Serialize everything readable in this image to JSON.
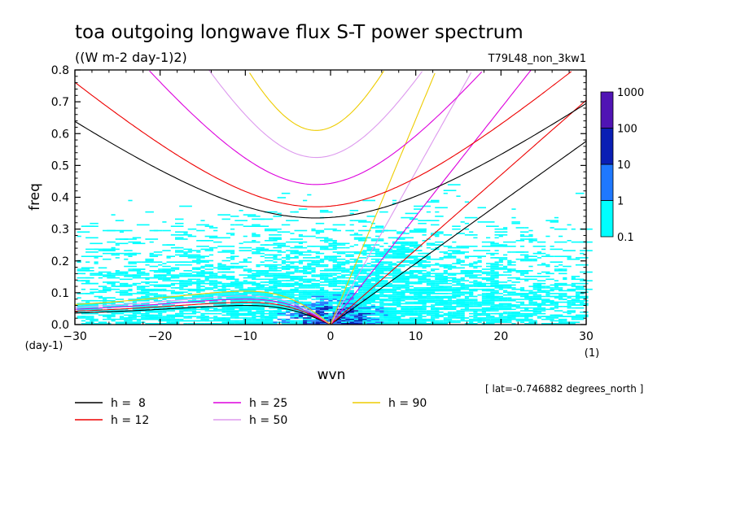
{
  "chart_data": {
    "type": "heatmap",
    "title": "toa outgoing longwave flux S-T power spectrum",
    "subtitle": "((W m-2 day-1)2)",
    "run_label": "T79L48_non_3kw1",
    "xlabel": "wvn",
    "ylabel": "freq",
    "x_unit_label": "(1)",
    "y_unit_label": "(day-1)",
    "xlim": [
      -30,
      30
    ],
    "ylim": [
      0,
      0.8
    ],
    "x_ticks": [
      -30,
      -20,
      -10,
      0,
      10,
      20,
      30
    ],
    "x_tick_labels": [
      "−30",
      "−20",
      "−10",
      "0",
      "10",
      "20",
      "30"
    ],
    "y_ticks": [
      0,
      0.1,
      0.2,
      0.3,
      0.4,
      0.5,
      0.6,
      0.7,
      0.8
    ],
    "y_tick_labels": [
      "0.0",
      "0.1",
      "0.2",
      "0.3",
      "0.4",
      "0.5",
      "0.6",
      "0.7",
      "0.8"
    ],
    "colorbar": {
      "levels": [
        "0.1",
        "1",
        "10",
        "100",
        "1000"
      ],
      "colors": [
        "#00ffff",
        "#1e78ff",
        "#0a1eb4",
        "#5014b4"
      ]
    },
    "lat_note": "[ lat=-0.746882 degrees_north ]",
    "legend": [
      {
        "label": "h =  8",
        "color": "#000000"
      },
      {
        "label": "h = 25",
        "color": "#dd00dd"
      },
      {
        "label": "h = 90",
        "color": "#eecc00"
      },
      {
        "label": "h = 12",
        "color": "#ee0000"
      },
      {
        "label": "h = 50",
        "color": "#dd99ee"
      }
    ],
    "dispersion_curves": {
      "kelvin_slope": [
        {
          "h": 8,
          "freq_per_wvn": 0.0192
        },
        {
          "h": 12,
          "freq_per_wvn": 0.0235
        },
        {
          "h": 25,
          "freq_per_wvn": 0.034
        },
        {
          "h": 50,
          "freq_per_wvn": 0.048
        },
        {
          "h": 90,
          "freq_per_wvn": 0.0645
        }
      ],
      "inertia_gravity_min": [
        {
          "h": 8,
          "freq": 0.335
        },
        {
          "h": 12,
          "freq": 0.37
        },
        {
          "h": 25,
          "freq": 0.44
        },
        {
          "h": 50,
          "freq": 0.525
        },
        {
          "h": 90,
          "freq": 0.61
        }
      ],
      "rossby_peak": [
        {
          "h": 8,
          "freq": 0.06
        },
        {
          "h": 12,
          "freq": 0.07
        },
        {
          "h": 25,
          "freq": 0.08
        },
        {
          "h": 50,
          "freq": 0.09
        },
        {
          "h": 90,
          "freq": 0.105
        }
      ]
    }
  }
}
